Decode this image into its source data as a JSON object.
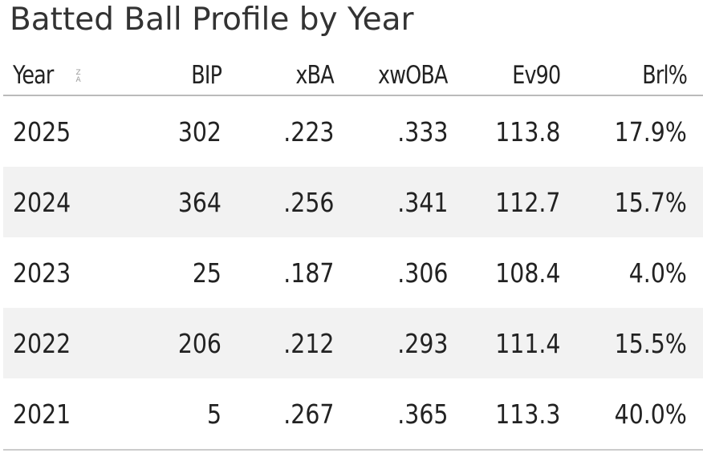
{
  "title": "Batted Ball Profile by Year",
  "icons": {
    "sort": "sort-za-icon",
    "sort_top": "Z",
    "sort_bottom": "A"
  },
  "columns": [
    "Year",
    "BIP",
    "xBA",
    "xwOBA",
    "Ev90",
    "Brl%"
  ],
  "rows": [
    [
      "2025",
      "302",
      ".223",
      ".333",
      "113.8",
      "17.9%"
    ],
    [
      "2024",
      "364",
      ".256",
      ".341",
      "112.7",
      "15.7%"
    ],
    [
      "2023",
      "25",
      ".187",
      ".306",
      "108.4",
      "4.0%"
    ],
    [
      "2022",
      "206",
      ".212",
      ".293",
      "111.4",
      "15.5%"
    ],
    [
      "2021",
      "5",
      ".267",
      ".365",
      "113.3",
      "40.0%"
    ]
  ]
}
